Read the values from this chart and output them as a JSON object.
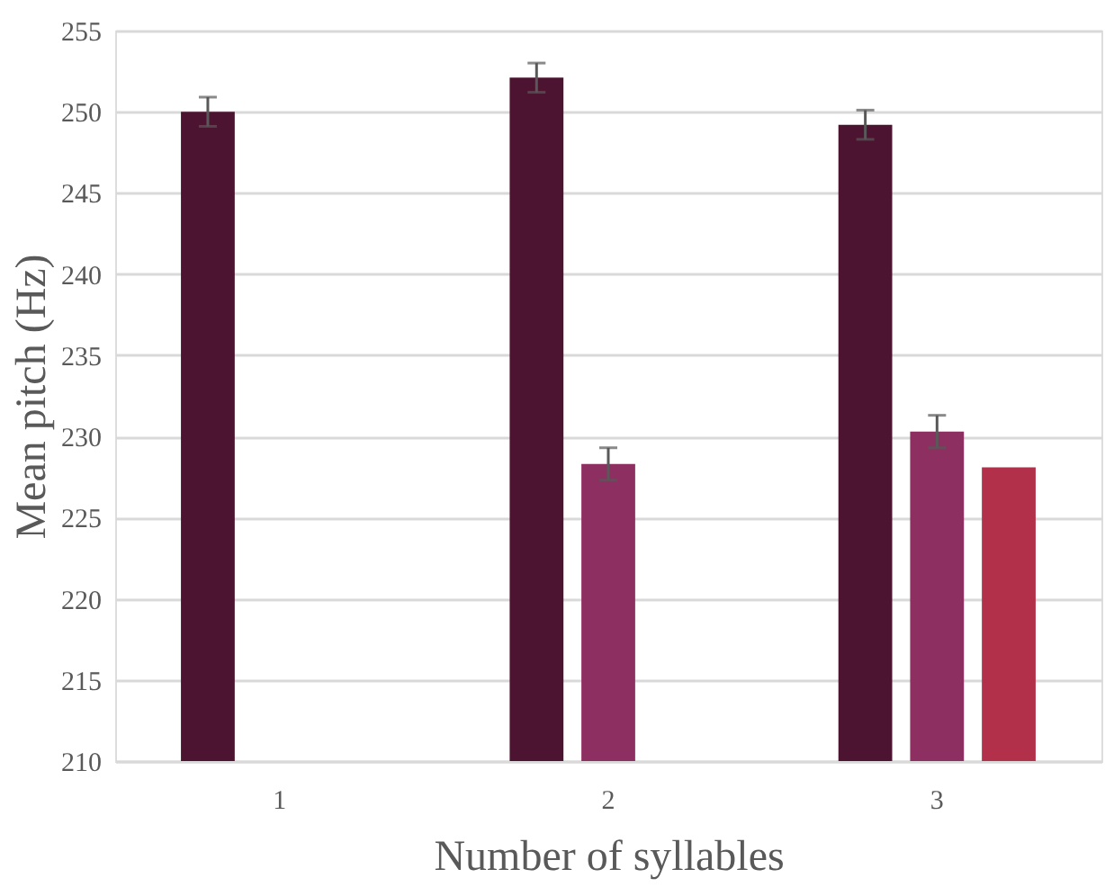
{
  "chart_data": {
    "type": "bar",
    "xlabel": "Number of syllables",
    "ylabel": "Mean pitch (Hz)",
    "categories": [
      "1",
      "2",
      "3"
    ],
    "series": [
      {
        "color": "#4c1430",
        "values": [
          250.0,
          252.1,
          249.2
        ],
        "errors": [
          0.9,
          0.9,
          0.9
        ]
      },
      {
        "color": "#8e2f62",
        "values": [
          null,
          228.3,
          230.3
        ],
        "errors": [
          null,
          1.0,
          1.0
        ]
      },
      {
        "color": "#b3304a",
        "values": [
          null,
          null,
          228.1
        ]
      }
    ],
    "ylim": [
      210,
      255
    ],
    "yticks": [
      210,
      215,
      220,
      225,
      230,
      235,
      240,
      245,
      250,
      255
    ],
    "grid": "y",
    "legend": false
  }
}
